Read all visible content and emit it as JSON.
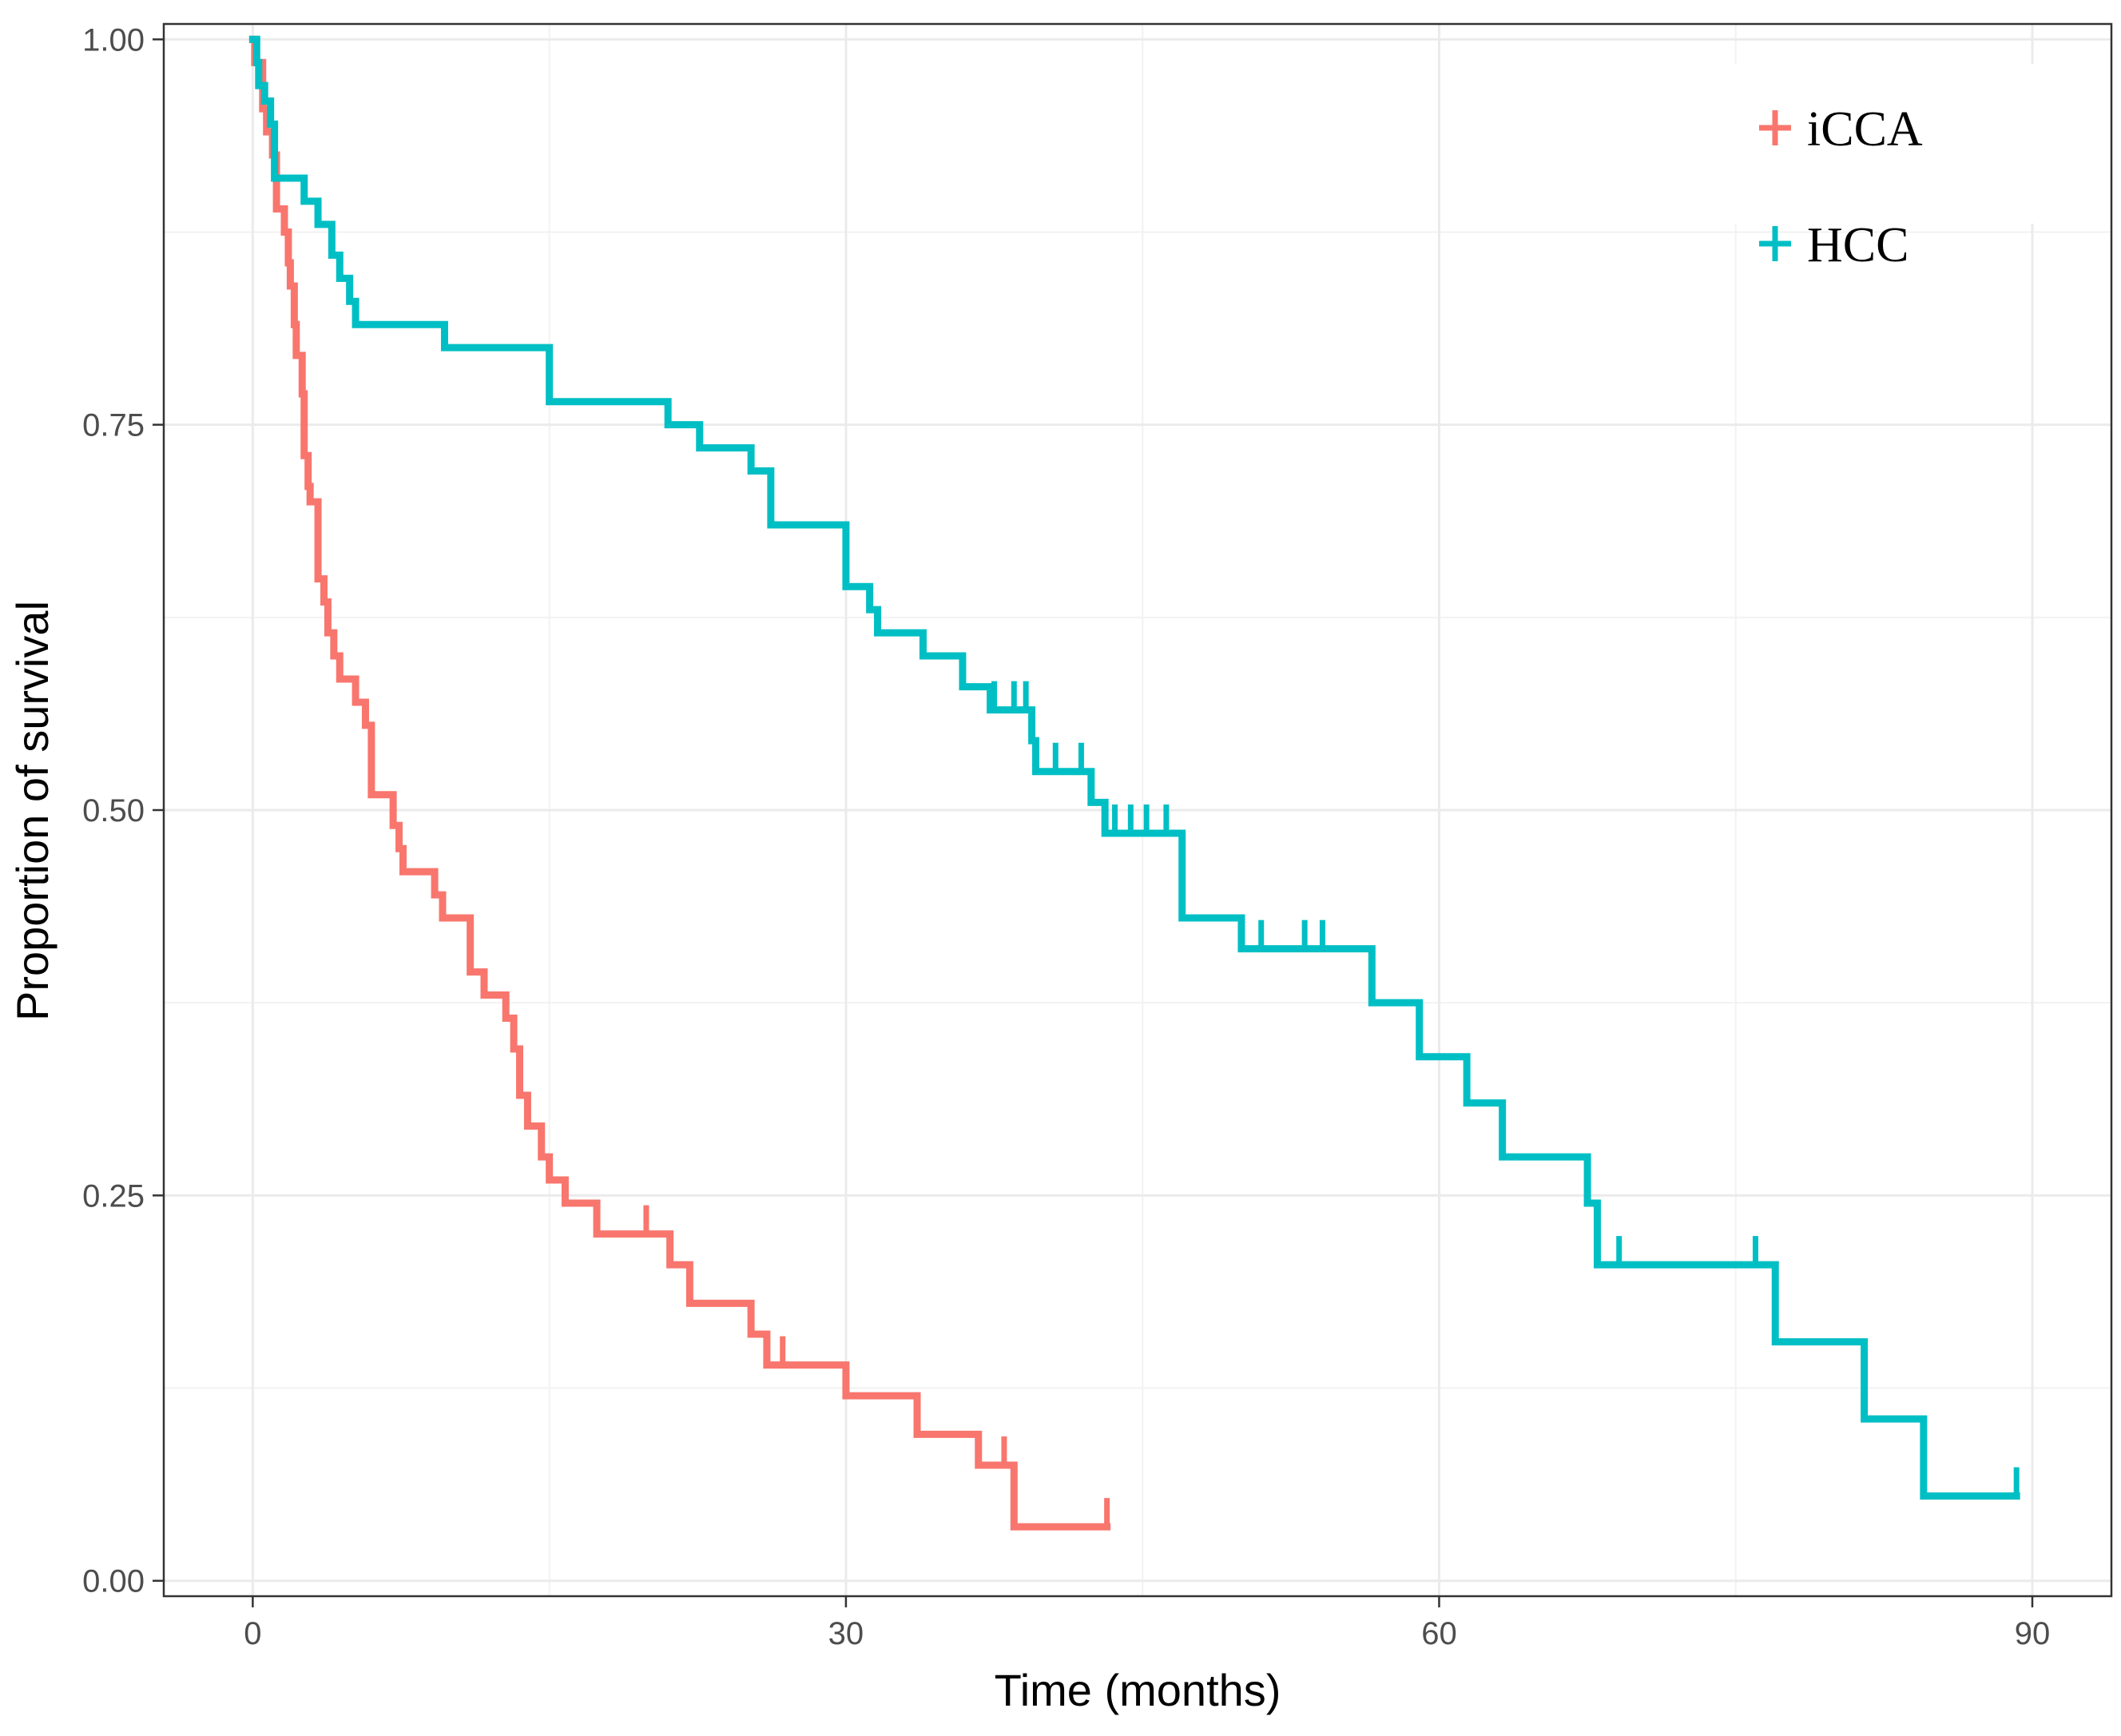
{
  "chart_data": {
    "type": "line",
    "subtype": "kaplan-meier",
    "title": "",
    "xlabel": "Time (months)",
    "ylabel": "Proportion of survival",
    "xlim": [
      -4.5,
      94
    ],
    "ylim": [
      -0.01,
      1.01
    ],
    "x_ticks": [
      0,
      30,
      60,
      90
    ],
    "x_tick_labels": [
      "0",
      "30",
      "60",
      "90"
    ],
    "y_ticks": [
      0,
      0.25,
      0.5,
      0.75,
      1.0
    ],
    "y_tick_labels": [
      "0.00",
      "0.25",
      "0.50",
      "0.75",
      "1.00"
    ],
    "grid": true,
    "legend_position": "top-right",
    "series": [
      {
        "name": "iCCA",
        "color": "#F8766D",
        "steps": [
          [
            0,
            1.0
          ],
          [
            0.1,
            0.985
          ],
          [
            0.5,
            0.955
          ],
          [
            0.7,
            0.94
          ],
          [
            1.0,
            0.925
          ],
          [
            1.2,
            0.89
          ],
          [
            1.6,
            0.875
          ],
          [
            1.8,
            0.855
          ],
          [
            1.9,
            0.84
          ],
          [
            2.1,
            0.815
          ],
          [
            2.2,
            0.795
          ],
          [
            2.5,
            0.77
          ],
          [
            2.6,
            0.73
          ],
          [
            2.8,
            0.71
          ],
          [
            2.9,
            0.7
          ],
          [
            3.3,
            0.65
          ],
          [
            3.6,
            0.635
          ],
          [
            3.8,
            0.615
          ],
          [
            4.1,
            0.6
          ],
          [
            4.4,
            0.585
          ],
          [
            5.2,
            0.57
          ],
          [
            5.7,
            0.555
          ],
          [
            6.0,
            0.51
          ],
          [
            7.1,
            0.49
          ],
          [
            7.4,
            0.475
          ],
          [
            7.6,
            0.46
          ],
          [
            9.2,
            0.445
          ],
          [
            9.6,
            0.43
          ],
          [
            11.0,
            0.395
          ],
          [
            11.7,
            0.38
          ],
          [
            12.8,
            0.365
          ],
          [
            13.2,
            0.345
          ],
          [
            13.5,
            0.315
          ],
          [
            13.9,
            0.295
          ],
          [
            14.6,
            0.275
          ],
          [
            15.0,
            0.26
          ],
          [
            15.8,
            0.245
          ],
          [
            17.4,
            0.225
          ],
          [
            21.1,
            0.205
          ],
          [
            22.1,
            0.18
          ],
          [
            25.2,
            0.16
          ],
          [
            26.0,
            0.14
          ],
          [
            30.0,
            0.12
          ],
          [
            33.6,
            0.095
          ],
          [
            36.7,
            0.075
          ],
          [
            38.5,
            0.035
          ],
          [
            43.2,
            0.035
          ]
        ],
        "censors": [
          [
            19.9,
            0.225
          ],
          [
            26.8,
            0.14
          ],
          [
            38.0,
            0.075
          ],
          [
            43.2,
            0.035
          ]
        ]
      },
      {
        "name": "HCC",
        "color": "#00BFC4",
        "steps": [
          [
            0,
            1.0
          ],
          [
            0.2,
            0.985
          ],
          [
            0.3,
            0.97
          ],
          [
            0.6,
            0.96
          ],
          [
            0.9,
            0.945
          ],
          [
            1.1,
            0.91
          ],
          [
            2.6,
            0.895
          ],
          [
            3.3,
            0.88
          ],
          [
            4.0,
            0.86
          ],
          [
            4.4,
            0.845
          ],
          [
            4.9,
            0.83
          ],
          [
            5.2,
            0.815
          ],
          [
            9.7,
            0.8
          ],
          [
            15.0,
            0.765
          ],
          [
            21.0,
            0.75
          ],
          [
            22.6,
            0.735
          ],
          [
            25.2,
            0.72
          ],
          [
            26.2,
            0.685
          ],
          [
            30.0,
            0.645
          ],
          [
            31.2,
            0.63
          ],
          [
            31.6,
            0.615
          ],
          [
            33.9,
            0.6
          ],
          [
            35.9,
            0.58
          ],
          [
            37.3,
            0.565
          ],
          [
            39.4,
            0.545
          ],
          [
            39.6,
            0.525
          ],
          [
            42.4,
            0.505
          ],
          [
            43.1,
            0.485
          ],
          [
            47.0,
            0.43
          ],
          [
            50.0,
            0.41
          ],
          [
            56.6,
            0.375
          ],
          [
            59.0,
            0.34
          ],
          [
            61.4,
            0.31
          ],
          [
            63.2,
            0.275
          ],
          [
            67.5,
            0.245
          ],
          [
            68.0,
            0.205
          ],
          [
            77.0,
            0.155
          ],
          [
            81.5,
            0.105
          ],
          [
            84.5,
            0.055
          ],
          [
            89.2,
            0.055
          ]
        ],
        "censors": [
          [
            37.5,
            0.565
          ],
          [
            38.5,
            0.565
          ],
          [
            39.1,
            0.565
          ],
          [
            40.6,
            0.525
          ],
          [
            41.9,
            0.525
          ],
          [
            43.6,
            0.485
          ],
          [
            44.4,
            0.485
          ],
          [
            45.2,
            0.485
          ],
          [
            46.2,
            0.485
          ],
          [
            51.0,
            0.41
          ],
          [
            53.2,
            0.41
          ],
          [
            54.1,
            0.41
          ],
          [
            69.1,
            0.205
          ],
          [
            76.0,
            0.205
          ],
          [
            89.2,
            0.055
          ]
        ]
      }
    ]
  }
}
